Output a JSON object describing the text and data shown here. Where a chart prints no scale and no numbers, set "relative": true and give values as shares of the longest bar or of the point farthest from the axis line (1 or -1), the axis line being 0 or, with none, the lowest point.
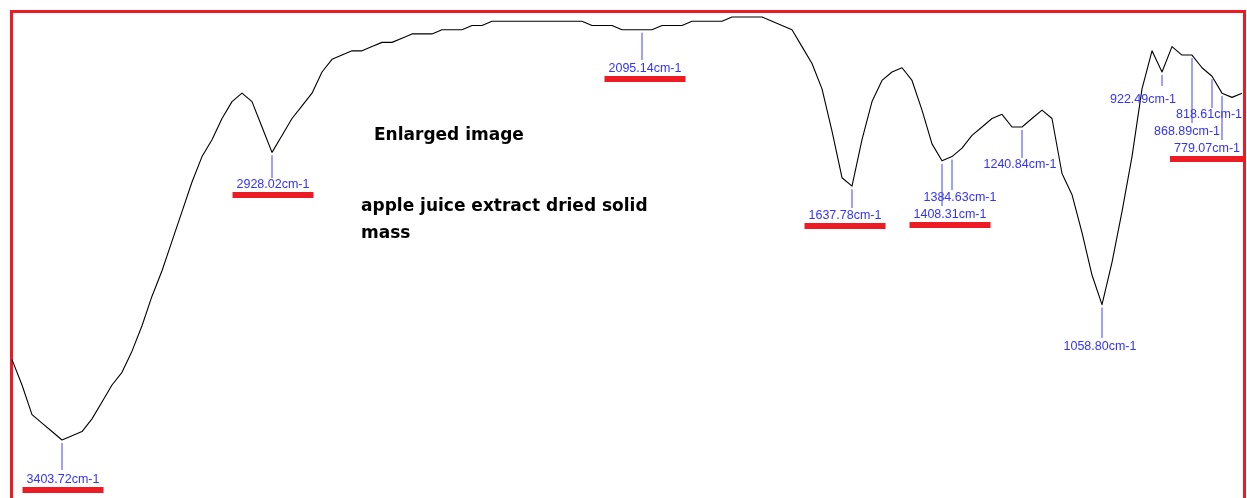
{
  "chart_data": {
    "type": "line",
    "relative": true,
    "categories": [
      null,
      null,
      null,
      null,
      null,
      null,
      null,
      null,
      null,
      null,
      null,
      null,
      null,
      null,
      null,
      null,
      null,
      null,
      null,
      null,
      null,
      null,
      null,
      null,
      null,
      null,
      null,
      null,
      null,
      null,
      null,
      null,
      null,
      null,
      null,
      null,
      null,
      null,
      null,
      null,
      null,
      null,
      null,
      null,
      null,
      null,
      null,
      null,
      null,
      null,
      null,
      null,
      null,
      null,
      null,
      null,
      null,
      null,
      null,
      null,
      null,
      null,
      null,
      null,
      null,
      null,
      null,
      null,
      null,
      null,
      null,
      null,
      null,
      null,
      null,
      null,
      null,
      null,
      null,
      null,
      null,
      null,
      null,
      null,
      null,
      null,
      null,
      null,
      null,
      null,
      null,
      null,
      null,
      null,
      null,
      null,
      null,
      null,
      null,
      null,
      null,
      null,
      null,
      null,
      null,
      null,
      null,
      null,
      null,
      null,
      null,
      null,
      null,
      null,
      null,
      null,
      null,
      null,
      null,
      null,
      null,
      null,
      null,
      null
    ],
    "series": [
      {
        "color": "#000000",
        "values": [
          0.19,
          0.13,
          0.06,
          0.04,
          0.02,
          0,
          0.01,
          0.02,
          0.05,
          0.09,
          0.13,
          0.16,
          0.21,
          0.27,
          0.34,
          0.4,
          0.47,
          0.54,
          0.61,
          0.67,
          0.71,
          0.76,
          0.8,
          0.82,
          0.8,
          0.74,
          0.68,
          0.72,
          0.76,
          0.79,
          0.82,
          0.87,
          0.9,
          0.91,
          0.92,
          0.92,
          0.93,
          0.94,
          0.94,
          0.95,
          0.96,
          0.96,
          0.96,
          0.97,
          0.97,
          0.97,
          0.98,
          0.98,
          0.99,
          0.99,
          0.99,
          0.99,
          0.99,
          0.99,
          0.99,
          0.99,
          0.99,
          0.99,
          0.98,
          0.98,
          0.98,
          0.97,
          0.97,
          0.97,
          0.97,
          0.98,
          0.98,
          0.98,
          0.99,
          0.99,
          0.99,
          0.99,
          1,
          1,
          1,
          1,
          0.99,
          0.98,
          0.97,
          0.93,
          0.89,
          0.83,
          0.73,
          0.62,
          0.6,
          0.71,
          0.8,
          0.85,
          0.87,
          0.88,
          0.85,
          0.78,
          0.7,
          0.66,
          0.67,
          0.69,
          0.72,
          0.74,
          0.76,
          0.77,
          0.74,
          0.74,
          0.76,
          0.78,
          0.76,
          0.63,
          0.58,
          0.49,
          0.39,
          0.32,
          0.42,
          0.54,
          0.67,
          0.83,
          0.92,
          0.87,
          0.93,
          0.91,
          0.91,
          0.88,
          0.86,
          0.82,
          0.81,
          0.82
        ]
      }
    ],
    "annotations": [
      "3403.72cm-1",
      "2928.02cm-1",
      "2095.14cm-1",
      "1637.78cm-1",
      "1384.63cm-1",
      "1408.31cm-1",
      "1240.84cm-1",
      "1058.80cm-1",
      "922.49cm-1",
      "868.89cm-1",
      "818.61cm-1",
      "779.07cm-1",
      "Enlarged image",
      "apple juice extract dried solid mass"
    ]
  }
}
